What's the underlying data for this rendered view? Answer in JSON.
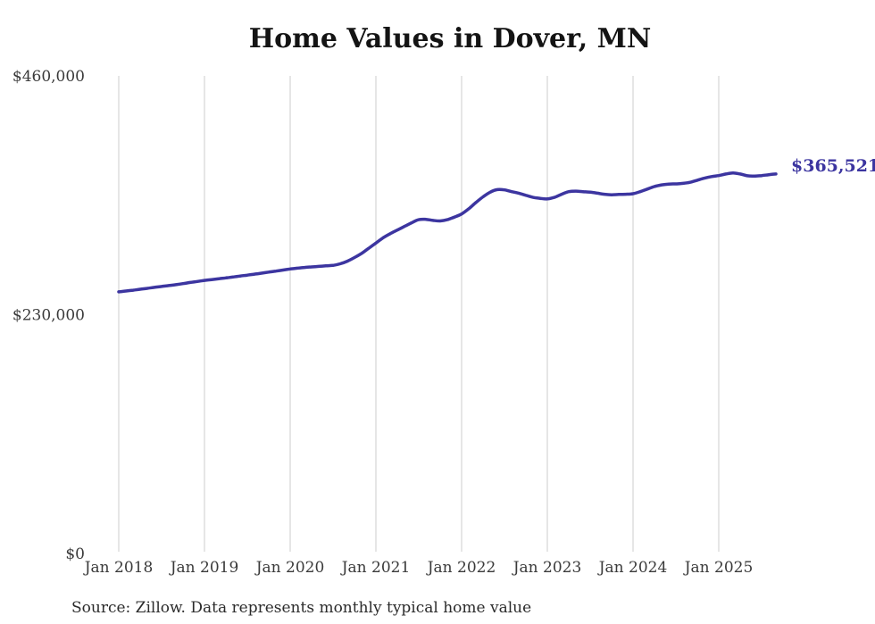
{
  "source_note": "Source: Zillow. Data represents monthly typical home value",
  "colors": {
    "line": "#3c35a0",
    "end_label": "#3c35a0",
    "grid": "#cccccc",
    "axis_text": "#3a3a3a",
    "title_text": "#141414",
    "source_text": "#2b2b2b",
    "background": "#ffffff"
  },
  "chart_data": {
    "type": "line",
    "title": "Home Values in Dover, MN",
    "xlabel": "",
    "ylabel": "",
    "ylim": [
      0,
      460000
    ],
    "grid": "vertical-only",
    "legend": "none",
    "y_ticks": [
      {
        "label": "$460,000",
        "value": 460000
      },
      {
        "label": "$230,000",
        "value": 230000
      },
      {
        "label": "$0",
        "value": 0
      }
    ],
    "x_ticks": [
      {
        "label": "Jan 2018",
        "month_index": 0
      },
      {
        "label": "Jan 2019",
        "month_index": 12
      },
      {
        "label": "Jan 2020",
        "month_index": 24
      },
      {
        "label": "Jan 2021",
        "month_index": 36
      },
      {
        "label": "Jan 2022",
        "month_index": 48
      },
      {
        "label": "Jan 2023",
        "month_index": 60
      },
      {
        "label": "Jan 2024",
        "month_index": 72
      },
      {
        "label": "Jan 2025",
        "month_index": 84
      }
    ],
    "series": [
      {
        "unit": "USD",
        "x_start": "2018-01",
        "x_frequency": "monthly",
        "end_value_label": "$365,521",
        "values": [
          252000,
          252800,
          253600,
          254500,
          255400,
          256300,
          257200,
          258000,
          258900,
          259900,
          261000,
          262000,
          263000,
          263800,
          264600,
          265400,
          266300,
          267200,
          268100,
          269000,
          270000,
          271000,
          272000,
          273000,
          274000,
          274800,
          275500,
          276000,
          276500,
          277000,
          277500,
          279000,
          281500,
          285000,
          289000,
          294000,
          299000,
          304000,
          308000,
          311500,
          315000,
          318500,
          321500,
          321800,
          320800,
          320300,
          321500,
          324000,
          327000,
          332000,
          338000,
          343500,
          348000,
          350500,
          350200,
          348500,
          347000,
          345000,
          343000,
          342000,
          341500,
          343000,
          346000,
          348500,
          349000,
          348500,
          348000,
          347000,
          346000,
          345500,
          345800,
          346000,
          346500,
          348500,
          351000,
          353500,
          355000,
          355800,
          356000,
          356500,
          357500,
          359500,
          361500,
          363000,
          364000,
          365500,
          366500,
          365500,
          363800,
          363500,
          364000,
          364800,
          365521
        ]
      }
    ]
  }
}
